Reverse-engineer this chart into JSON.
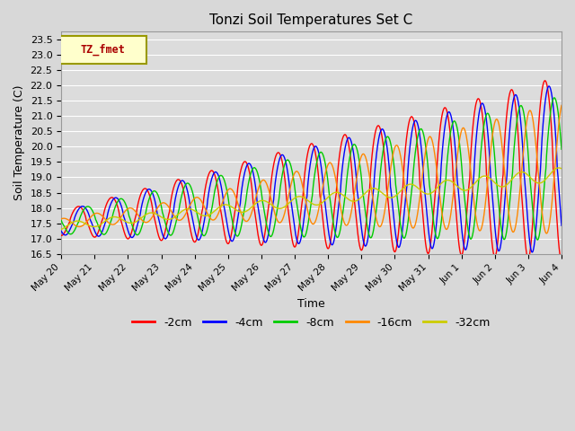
{
  "title": "Tonzi Soil Temperatures Set C",
  "xlabel": "Time",
  "ylabel": "Soil Temperature (C)",
  "ylim": [
    16.5,
    23.75
  ],
  "xlim_start": 0,
  "xlim_end": 15,
  "xtick_labels": [
    "May 20",
    "May 21",
    "May 22",
    "May 23",
    "May 24",
    "May 25",
    "May 26",
    "May 27",
    "May 28",
    "May 29",
    "May 30",
    "May 31",
    "Jun 1",
    "Jun 2",
    "Jun 3",
    "Jun 4"
  ],
  "ytick_values": [
    16.5,
    17.0,
    17.5,
    18.0,
    18.5,
    19.0,
    19.5,
    20.0,
    20.5,
    21.0,
    21.5,
    22.0,
    22.5,
    23.0,
    23.5
  ],
  "colors": {
    "-2cm": "#ff0000",
    "-4cm": "#0000ff",
    "-8cm": "#00cc00",
    "-16cm": "#ff8800",
    "-32cm": "#cccc00"
  },
  "legend_label": "TZ_fmet",
  "legend_bg": "#ffffcc",
  "legend_border": "#999900",
  "bg_color": "#dcdcdc",
  "grid_color": "#ffffff",
  "n_points": 1440
}
